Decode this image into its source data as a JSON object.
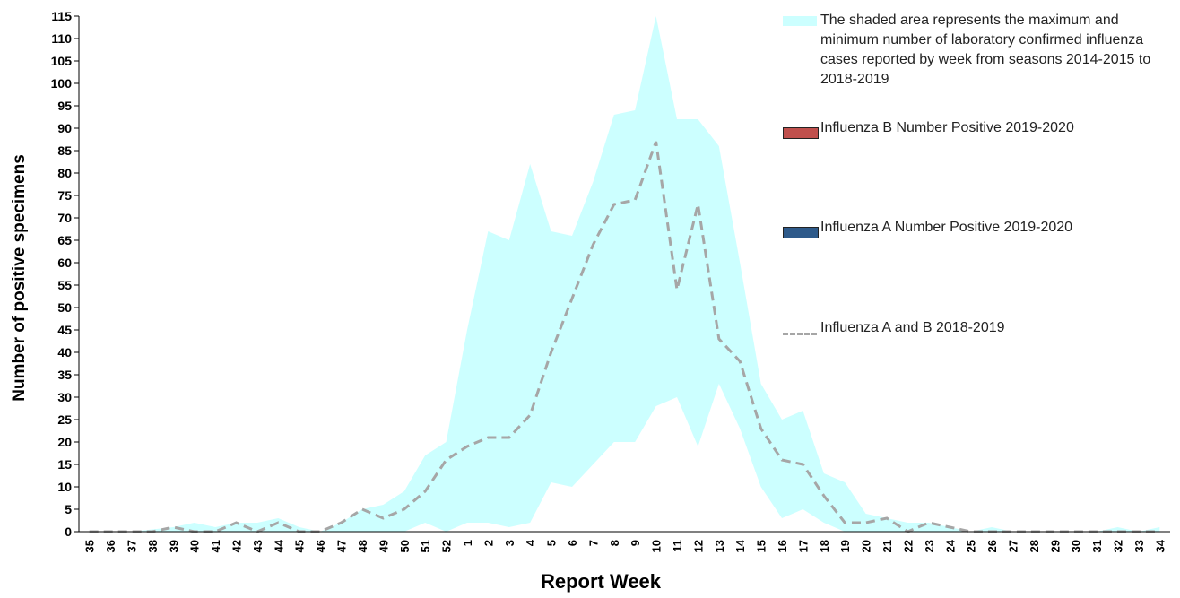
{
  "chart_data": {
    "type": "line",
    "xlabel": "Report Week",
    "ylabel": "Number of positive specimens",
    "categories": [
      "35",
      "36",
      "37",
      "38",
      "39",
      "40",
      "41",
      "42",
      "43",
      "44",
      "45",
      "46",
      "47",
      "48",
      "49",
      "50",
      "51",
      "52",
      "1",
      "2",
      "3",
      "4",
      "5",
      "6",
      "7",
      "8",
      "9",
      "10",
      "11",
      "12",
      "13",
      "14",
      "15",
      "16",
      "17",
      "18",
      "19",
      "20",
      "21",
      "22",
      "23",
      "24",
      "25",
      "26",
      "27",
      "28",
      "29",
      "30",
      "31",
      "32",
      "33",
      "34"
    ],
    "ylim": [
      0,
      115
    ],
    "yticks": [
      0,
      5,
      10,
      15,
      20,
      25,
      30,
      35,
      40,
      45,
      50,
      55,
      60,
      65,
      70,
      75,
      80,
      85,
      90,
      95,
      100,
      105,
      110,
      115
    ],
    "series": [
      {
        "name": "The shaded area represents the maximum and minimum number of laboratory confirmed influenza cases reported by week from seasons 2014-2015 to 2018-2019",
        "kind": "band",
        "color": "#ccffff",
        "upper": [
          0,
          0,
          0,
          0.5,
          1,
          2,
          1,
          2,
          2,
          3,
          1,
          0,
          2,
          5,
          6,
          9,
          17,
          20,
          45,
          67,
          65,
          82,
          67,
          66,
          78,
          93,
          94,
          115,
          92,
          92,
          86,
          60,
          33,
          25,
          27,
          13,
          11,
          4,
          3,
          2,
          2,
          1,
          0,
          1,
          0,
          0,
          0,
          0,
          0,
          1,
          0,
          1
        ],
        "lower": [
          0,
          0,
          0,
          0,
          0,
          0,
          0,
          0,
          0,
          0,
          0,
          0,
          0,
          0,
          0,
          0,
          2,
          0,
          2,
          2,
          1,
          2,
          11,
          10,
          15,
          20,
          20,
          28,
          30,
          19,
          33,
          23,
          10,
          3,
          5,
          2,
          0,
          0,
          0,
          0,
          0,
          0,
          0,
          0,
          0,
          0,
          0,
          0,
          0,
          0,
          0,
          0
        ]
      },
      {
        "name": "Influenza B Number Positive 2019-2020",
        "kind": "bar",
        "color": "#c0504d",
        "values": [
          null,
          null,
          null,
          null,
          null,
          null,
          null,
          null,
          null,
          null,
          null,
          null,
          null,
          null,
          null,
          null,
          null,
          null,
          null,
          null,
          null,
          null,
          null,
          null,
          null,
          null,
          null,
          null,
          null,
          null,
          null,
          null,
          null,
          null,
          null,
          null,
          null,
          null,
          null,
          null,
          null,
          null,
          null,
          null,
          null,
          null,
          null,
          null,
          null,
          null,
          null,
          null
        ]
      },
      {
        "name": "Influenza A Number Positive 2019-2020",
        "kind": "bar",
        "color": "#2e5a8a",
        "values": [
          null,
          null,
          null,
          null,
          null,
          null,
          null,
          null,
          null,
          null,
          null,
          null,
          null,
          null,
          null,
          null,
          null,
          null,
          null,
          null,
          null,
          null,
          null,
          null,
          null,
          null,
          null,
          null,
          null,
          null,
          null,
          null,
          null,
          null,
          null,
          null,
          null,
          null,
          null,
          null,
          null,
          null,
          null,
          null,
          null,
          null,
          null,
          null,
          null,
          null,
          null,
          null
        ]
      },
      {
        "name": "Influenza A and B 2018-2019",
        "kind": "dashed-line",
        "color": "#a6a6a6",
        "values": [
          0,
          0,
          0,
          0,
          1,
          0,
          0,
          2,
          0,
          2,
          0,
          0,
          2,
          5,
          3,
          5,
          9,
          16,
          19,
          21,
          21,
          26,
          40,
          52,
          64,
          73,
          74,
          87,
          54,
          73,
          43,
          38,
          23,
          16,
          15,
          8,
          2,
          2,
          3,
          0,
          2,
          1,
          0,
          0,
          0,
          0,
          0,
          0,
          0,
          0,
          0,
          0
        ]
      }
    ]
  }
}
